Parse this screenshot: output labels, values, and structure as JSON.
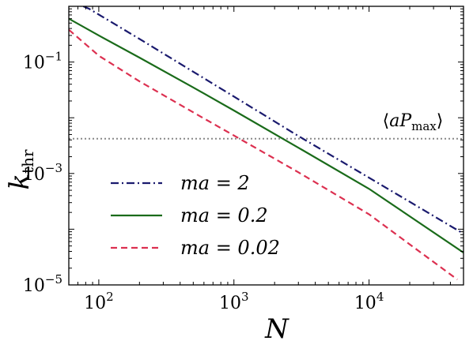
{
  "chart_data": {
    "type": "line",
    "title": "",
    "xlabel": "N",
    "ylabel_main": "k",
    "ylabel_sub": "thr",
    "xscale": "log",
    "yscale": "log",
    "xlim": [
      60,
      50000
    ],
    "ylim": [
      1e-05,
      1
    ],
    "grid": false,
    "legend_position": "bottom-left",
    "x_ticks": [
      {
        "value": 100,
        "base": "10",
        "exp": "2"
      },
      {
        "value": 1000,
        "base": "10",
        "exp": "3"
      },
      {
        "value": 10000,
        "base": "10",
        "exp": "4"
      }
    ],
    "y_ticks": [
      {
        "value": 1e-05,
        "base": "10",
        "exp": "−5"
      },
      {
        "value": 0.001,
        "base": "10",
        "exp": "−3"
      },
      {
        "value": 0.1,
        "base": "10",
        "exp": "−1"
      }
    ],
    "series": [
      {
        "name": "ma = 2",
        "color": "#1a1a6e",
        "dash": "dashdot",
        "x": [
          60,
          85,
          200,
          1000,
          3000,
          10000,
          50000
        ],
        "y": [
          1.3,
          0.9,
          0.26,
          0.024,
          0.0047,
          0.00084,
          8.3e-05
        ]
      },
      {
        "name": "ma = 0.2",
        "color": "#1a6b1a",
        "dash": "solid",
        "x": [
          60,
          100,
          200,
          500,
          1000,
          3000,
          10000,
          50000
        ],
        "y": [
          0.6,
          0.3,
          0.12,
          0.035,
          0.0135,
          0.0029,
          0.00053,
          3.8e-05
        ]
      },
      {
        "name": "ma = 0.02",
        "color": "#dc3050",
        "dash": "dashed",
        "x": [
          60,
          100,
          200,
          500,
          1000,
          3000,
          10000,
          45000
        ],
        "y": [
          0.38,
          0.13,
          0.045,
          0.0125,
          0.0048,
          0.00105,
          0.000185,
          1.25e-05
        ]
      }
    ],
    "reference_line": {
      "label_base": "aP",
      "label_sub": "max",
      "y": 0.0042,
      "color": "#888888",
      "dash": "dotted"
    }
  }
}
